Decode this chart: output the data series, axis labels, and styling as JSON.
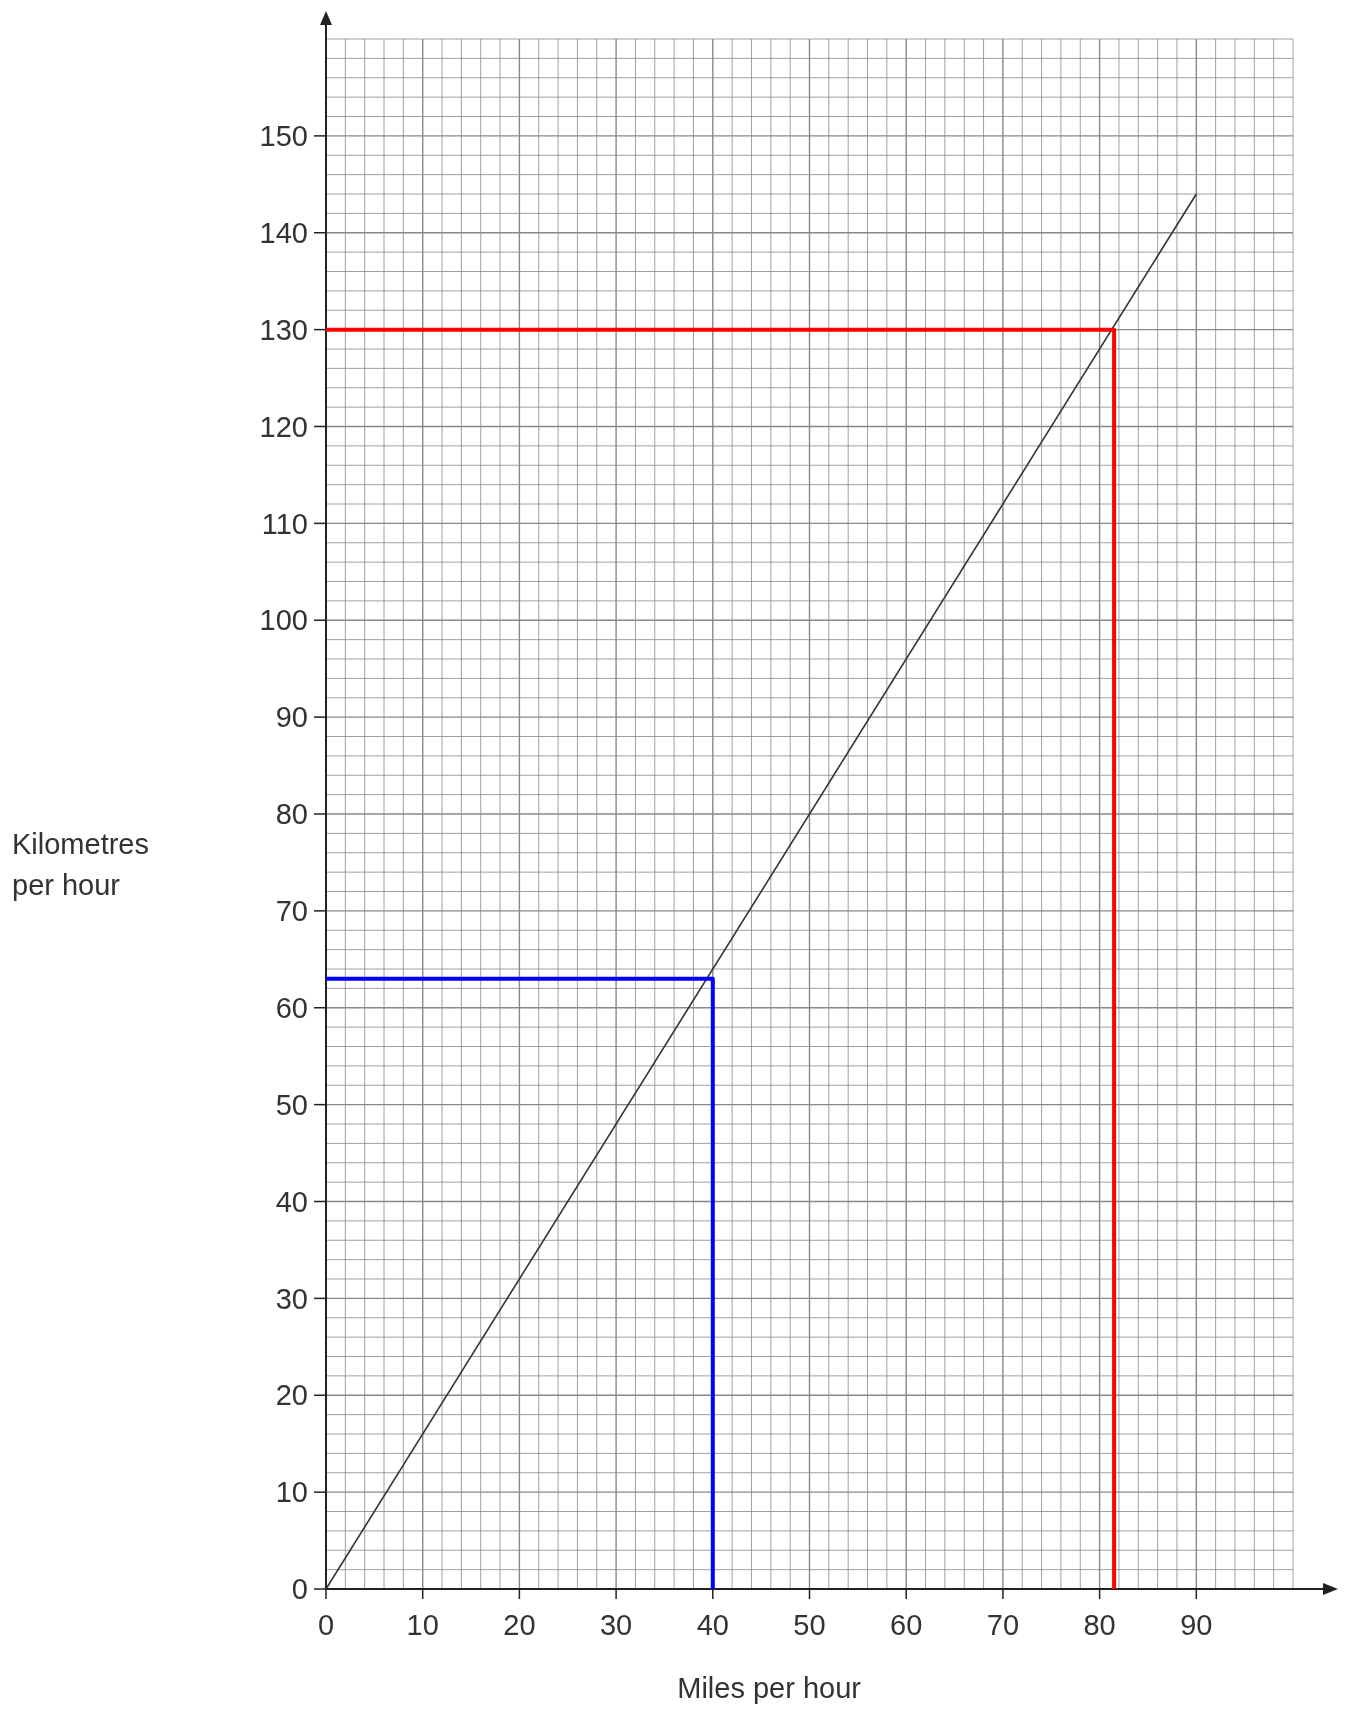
{
  "chart_data": {
    "type": "line",
    "xlabel": "Miles per hour",
    "ylabel": "Kilometres per hour",
    "xlim": [
      0,
      100
    ],
    "ylim": [
      0,
      160
    ],
    "xticks": [
      0,
      10,
      20,
      30,
      40,
      50,
      60,
      70,
      80,
      90
    ],
    "yticks": [
      0,
      10,
      20,
      30,
      40,
      50,
      60,
      70,
      80,
      90,
      100,
      110,
      120,
      130,
      140,
      150
    ],
    "grid": true,
    "marker": "none",
    "line_style": "solid",
    "series": [
      {
        "color": "#333333",
        "x": [
          0,
          90
        ],
        "values": [
          0,
          144
        ]
      },
      {
        "color": "#ff0000",
        "x": [
          0,
          81.5,
          81.5
        ],
        "values": [
          130,
          130,
          0
        ]
      },
      {
        "color": "#0000ff",
        "x": [
          0,
          40,
          40
        ],
        "values": [
          63,
          63,
          0
        ]
      }
    ]
  }
}
